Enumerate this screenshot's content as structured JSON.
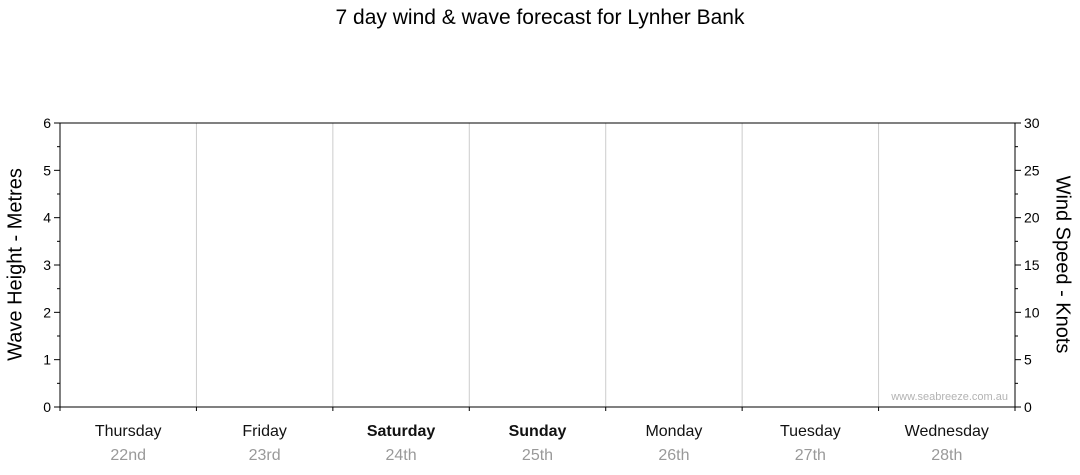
{
  "page": {
    "title": "7 day wind & wave forecast for Lynher Bank"
  },
  "chart_data": {
    "type": "line",
    "title": "7 day wind & wave forecast for Lynher Bank",
    "categories": [
      {
        "day": "Thursday",
        "date": "22nd",
        "weekend": false
      },
      {
        "day": "Friday",
        "date": "23rd",
        "weekend": false
      },
      {
        "day": "Saturday",
        "date": "24th",
        "weekend": true
      },
      {
        "day": "Sunday",
        "date": "25th",
        "weekend": true
      },
      {
        "day": "Monday",
        "date": "26th",
        "weekend": false
      },
      {
        "day": "Tuesday",
        "date": "27th",
        "weekend": false
      },
      {
        "day": "Wednesday",
        "date": "28th",
        "weekend": false
      }
    ],
    "left_axis": {
      "label": "Wave Height - Metres",
      "min": 0,
      "max": 6,
      "major_step": 1,
      "minor_step": 0.5
    },
    "right_axis": {
      "label": "Wind Speed - Knots",
      "min": 0,
      "max": 30,
      "major_step": 5,
      "minor_step": 2.5
    },
    "series": [],
    "legend": "none",
    "grid": "vertical-day-separators-only",
    "watermark": "www.seabreeze.com.au",
    "colors": {
      "axis": "#000000",
      "gridline": "#cccccc",
      "day_label": "#111111",
      "date_label": "#999999",
      "watermark": "#b3b3b3"
    }
  }
}
